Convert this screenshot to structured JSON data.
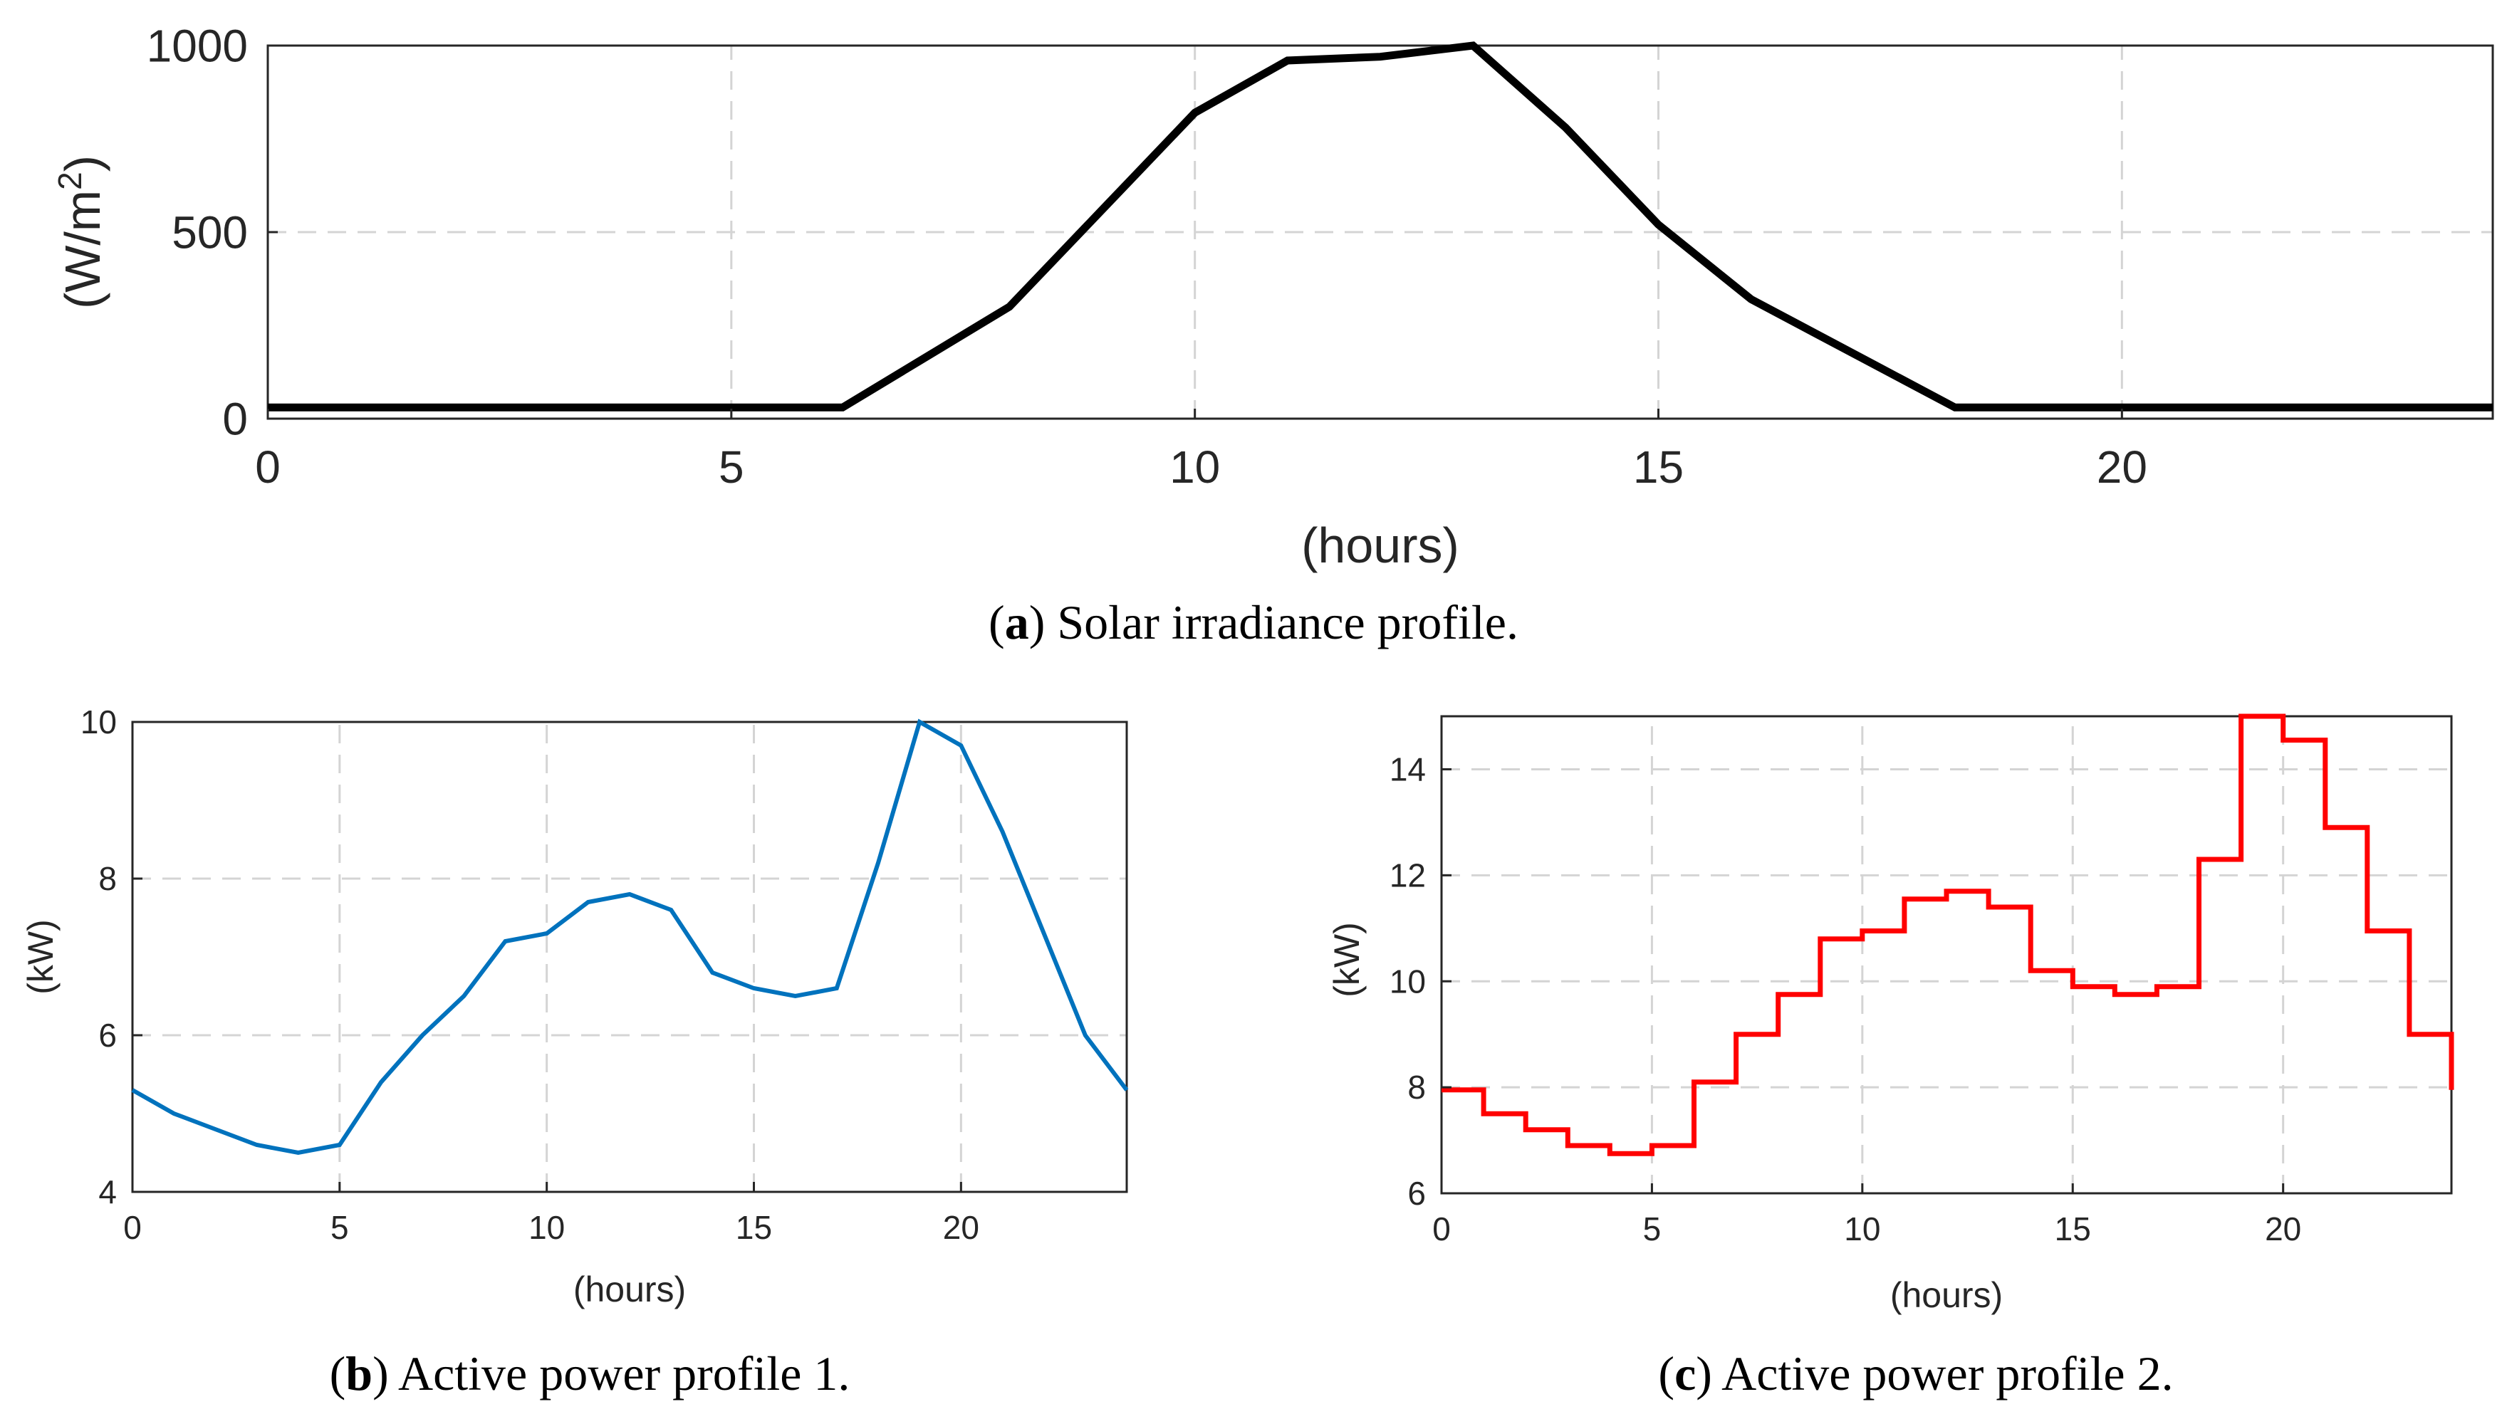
{
  "chart_data": [
    {
      "id": "a",
      "type": "line",
      "color": "#000000",
      "caption": {
        "letter": "a",
        "pre": "(",
        "post": ") Solar irradiance profile."
      },
      "xlabel": "(hours)",
      "ylabel": "(W/m",
      "ylabel_sup": "2",
      "ylabel_end": ")",
      "xlim": [
        0,
        24
      ],
      "ylim": [
        0,
        1000
      ],
      "xticks": [
        0,
        5,
        10,
        15,
        20
      ],
      "yticks": [
        0,
        500,
        1000
      ],
      "grid": true,
      "series": [
        {
          "name": "Solar irradiance",
          "x": [
            0,
            6.2,
            8,
            9,
            10,
            11,
            12,
            13,
            14,
            15,
            16,
            18.2,
            24
          ],
          "y": [
            30,
            30,
            300,
            560,
            820,
            960,
            970,
            1000,
            780,
            520,
            320,
            30,
            30
          ]
        }
      ]
    },
    {
      "id": "b",
      "type": "line",
      "color": "#0072BD",
      "caption": {
        "letter": "b",
        "pre": "(",
        "post": ") Active power profile 1."
      },
      "xlabel": "(hours)",
      "ylabel": "(kW)",
      "xlim": [
        0,
        24
      ],
      "ylim": [
        4,
        10
      ],
      "xticks": [
        0,
        5,
        10,
        15,
        20
      ],
      "yticks": [
        4,
        6,
        8,
        10
      ],
      "grid": true,
      "series": [
        {
          "name": "Active power profile 1",
          "x": [
            0,
            1,
            2,
            3,
            4,
            5,
            6,
            7,
            8,
            9,
            10,
            11,
            12,
            13,
            14,
            15,
            16,
            17,
            18,
            19,
            20,
            21,
            22,
            23,
            24
          ],
          "y": [
            5.3,
            5.0,
            4.8,
            4.6,
            4.5,
            4.6,
            5.4,
            6.0,
            6.5,
            7.2,
            7.3,
            7.7,
            7.8,
            7.6,
            6.8,
            6.6,
            6.5,
            6.6,
            8.2,
            10.0,
            9.7,
            8.6,
            7.3,
            6.0,
            5.3
          ]
        }
      ]
    },
    {
      "id": "c",
      "type": "line",
      "step": true,
      "color": "#FF0000",
      "caption": {
        "letter": "c",
        "pre": "(",
        "post": ") Active power profile 2."
      },
      "xlabel": "(hours)",
      "ylabel": "(kW)",
      "xlim": [
        0,
        24
      ],
      "ylim": [
        6,
        15
      ],
      "xticks": [
        0,
        5,
        10,
        15,
        20
      ],
      "yticks": [
        6,
        8,
        10,
        12,
        14
      ],
      "grid": true,
      "series": [
        {
          "name": "Active power profile 2",
          "x": [
            0,
            1,
            2,
            3,
            4,
            5,
            6,
            7,
            8,
            9,
            10,
            11,
            12,
            13,
            14,
            15,
            16,
            17,
            18,
            19,
            20,
            21,
            22,
            23
          ],
          "y": [
            7.95,
            7.5,
            7.2,
            6.9,
            6.75,
            6.9,
            8.1,
            9.0,
            9.75,
            10.8,
            10.95,
            11.55,
            11.7,
            11.4,
            10.2,
            9.9,
            9.75,
            9.9,
            12.3,
            15.0,
            14.55,
            12.9,
            10.95,
            9.0
          ],
          "x_end": 24,
          "y_end": 7.95
        }
      ]
    }
  ]
}
